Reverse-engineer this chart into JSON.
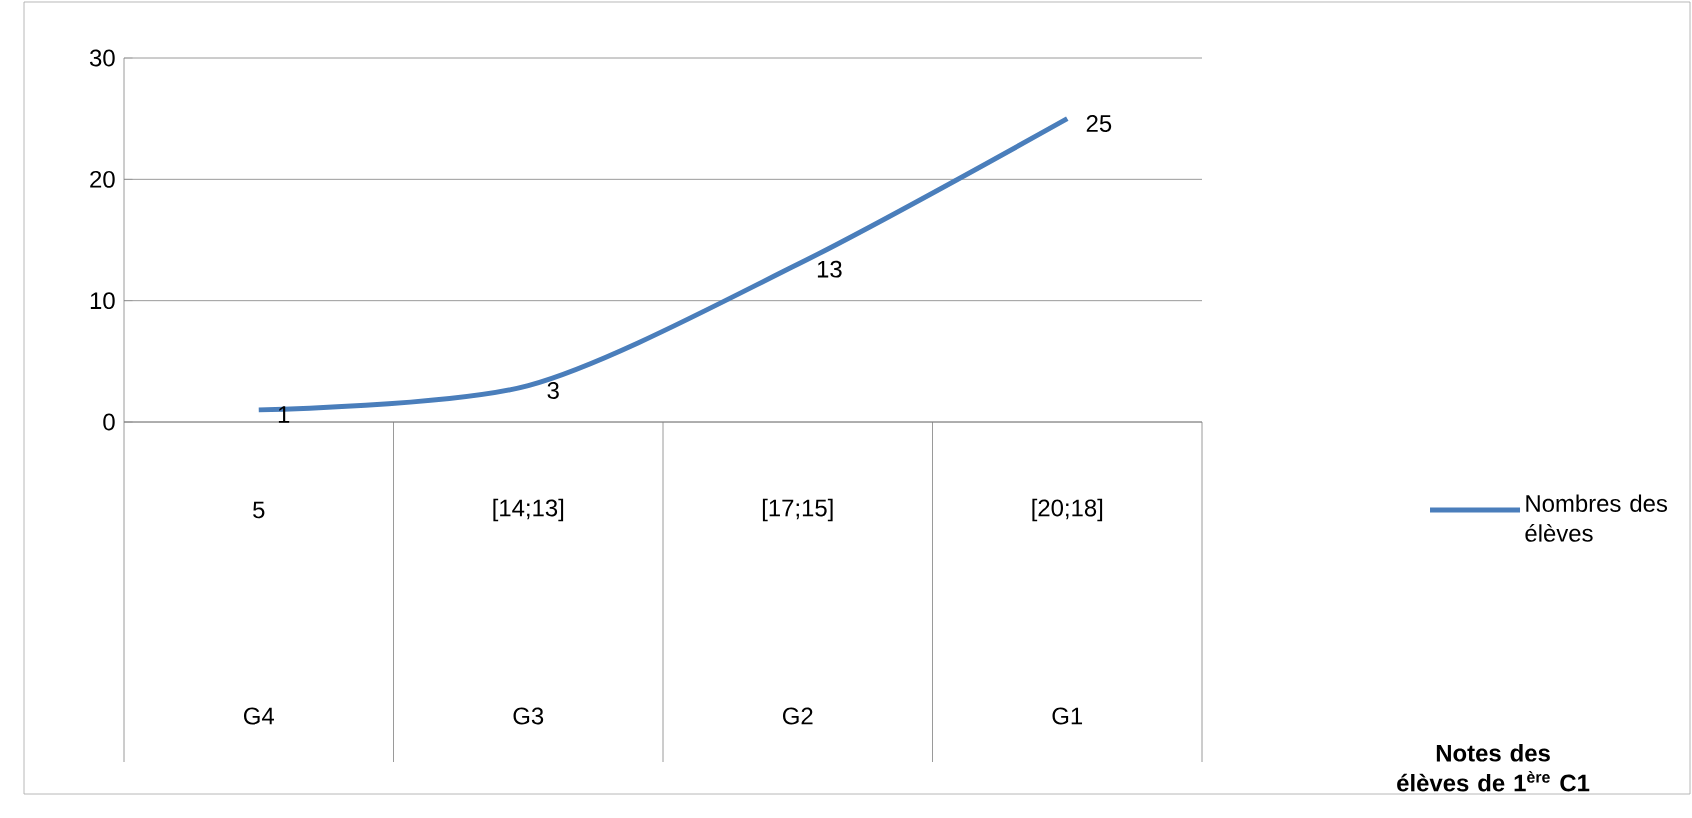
{
  "chart_data": {
    "type": "line",
    "categories": [
      "5",
      "[14;13]",
      "[17;15]",
      "[20;18]"
    ],
    "series": [
      {
        "name": "Nombres des élèves",
        "color": "#4a7ebb",
        "values": [
          1,
          3,
          13,
          25
        ]
      }
    ],
    "annotations": [
      "G4",
      "G3",
      "G2",
      "G1",
      "Notes des élèves de 1$^{ère}$ C1"
    ],
    "ylim": [
      0,
      30
    ],
    "yticks": [
      0,
      10,
      20,
      30
    ],
    "grid": "y",
    "legend": "right",
    "data_labels": true,
    "marker": "none",
    "line_style": "solid"
  }
}
